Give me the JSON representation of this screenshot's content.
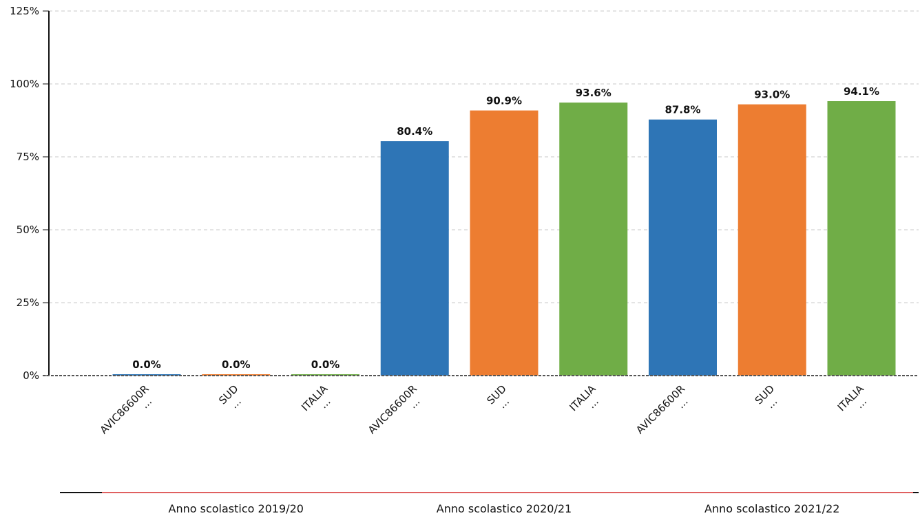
{
  "chart_data": {
    "type": "bar",
    "y_axis": {
      "ticks": [
        "0%",
        "25%",
        "50%",
        "75%",
        "100%",
        "125%"
      ],
      "ylim": [
        0,
        125
      ],
      "unit": "%"
    },
    "grid": true,
    "legend": "none",
    "groups": [
      {
        "label": "Anno scolastico 2019/20",
        "bars": [
          {
            "category": "AVIC86600R",
            "value": 0.0,
            "label": "0.0%",
            "color": "#2e75b6"
          },
          {
            "category": "SUD",
            "value": 0.0,
            "label": "0.0%",
            "color": "#ed7d31"
          },
          {
            "category": "ITALIA",
            "value": 0.0,
            "label": "0.0%",
            "color": "#70ad47"
          }
        ]
      },
      {
        "label": "Anno scolastico 2020/21",
        "bars": [
          {
            "category": "AVIC86600R",
            "value": 80.4,
            "label": "80.4%",
            "color": "#2e75b6"
          },
          {
            "category": "SUD",
            "value": 90.9,
            "label": "90.9%",
            "color": "#ed7d31"
          },
          {
            "category": "ITALIA",
            "value": 93.6,
            "label": "93.6%",
            "color": "#70ad47"
          }
        ]
      },
      {
        "label": "Anno scolastico 2021/22",
        "bars": [
          {
            "category": "AVIC86600R",
            "value": 87.8,
            "label": "87.8%",
            "color": "#2e75b6"
          },
          {
            "category": "SUD",
            "value": 93.0,
            "label": "93.0%",
            "color": "#ed7d31"
          },
          {
            "category": "ITALIA",
            "value": 94.1,
            "label": "94.1%",
            "color": "#70ad47"
          }
        ]
      }
    ],
    "tick_suffix": "..."
  }
}
